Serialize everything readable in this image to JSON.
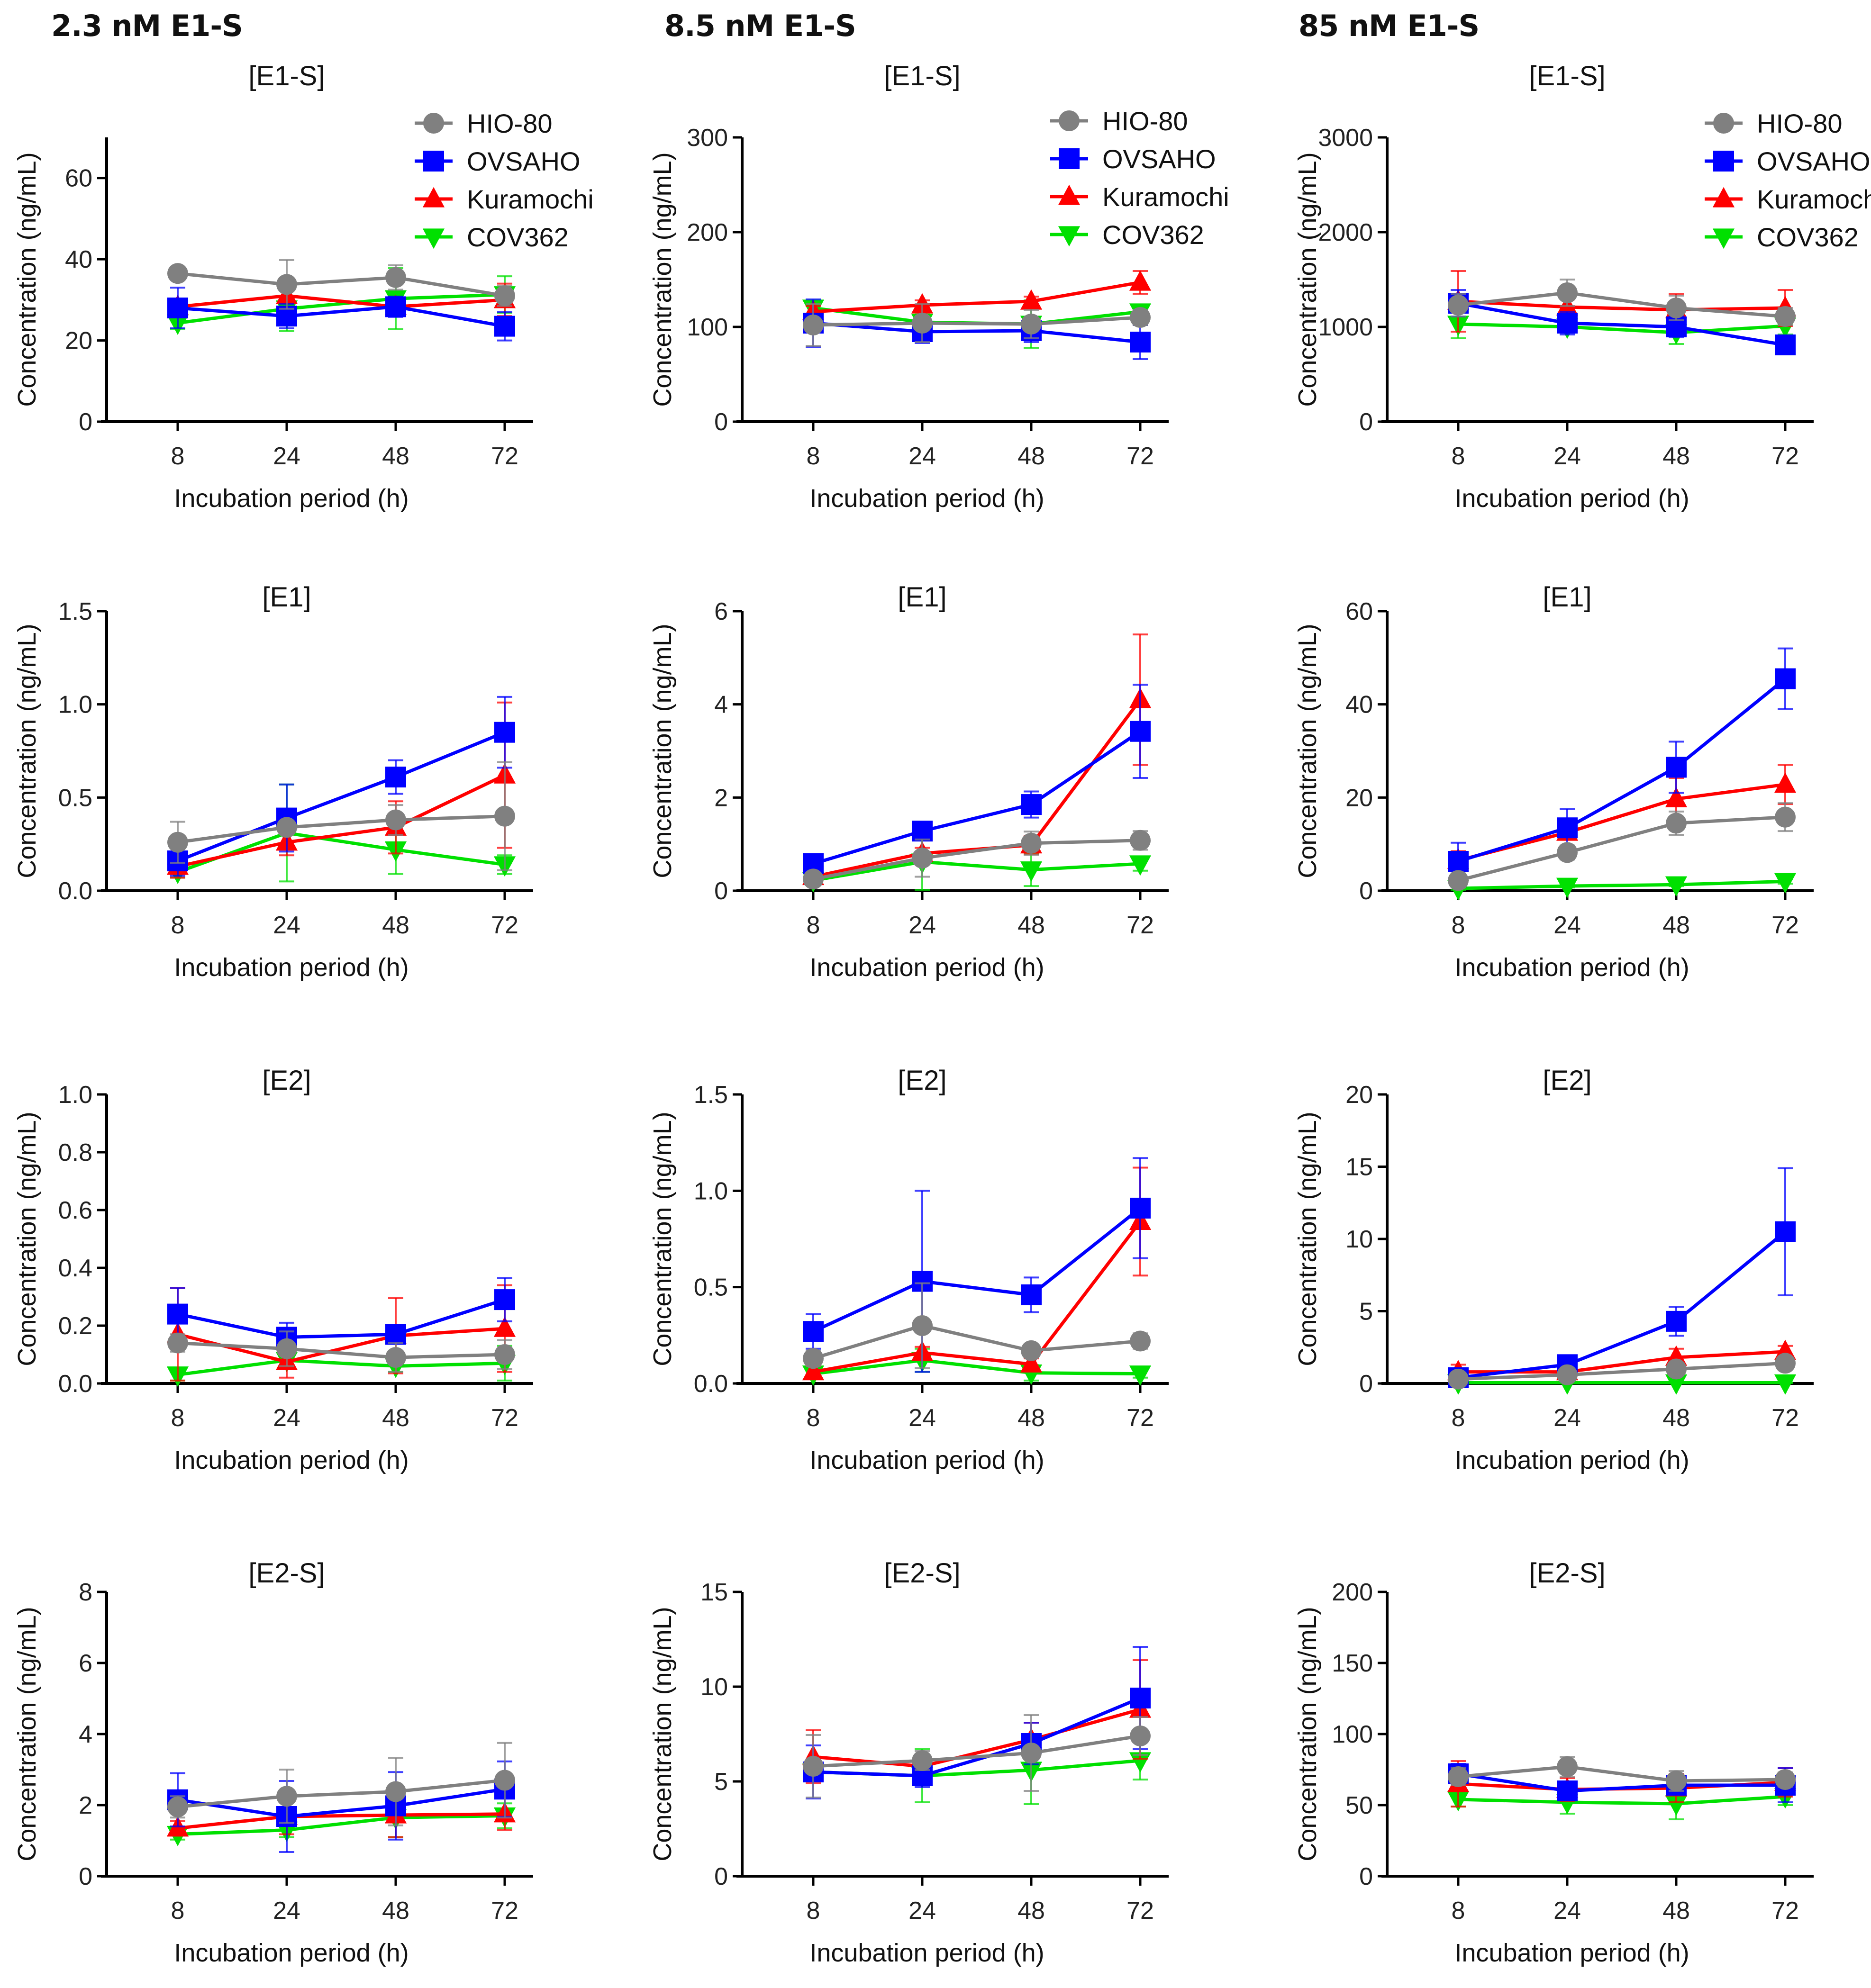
{
  "figure": {
    "column_titles": [
      "2.3 nM E1-S",
      "8.5 nM E1-S",
      "85 nM E1-S"
    ]
  },
  "legend": [
    {
      "name": "HIO-80",
      "color": "#808080",
      "marker": "circle"
    },
    {
      "name": "OVSAHO",
      "color": "#0000ff",
      "marker": "square"
    },
    {
      "name": "Kuramochi",
      "color": "#ff0000",
      "marker": "triangle-up"
    },
    {
      "name": "COV362",
      "color": "#00e000",
      "marker": "triangle-down"
    }
  ],
  "chart_data": [
    {
      "type": "line",
      "row": 0,
      "col": 0,
      "title": "[E1-S]",
      "xlabel": "Incubation period (h)",
      "ylabel": "Concentration (ng/mL)",
      "categories": [
        "8",
        "24",
        "48",
        "72"
      ],
      "ylim": [
        0,
        70
      ],
      "yticks": [
        "0",
        "20",
        "40",
        "60"
      ],
      "legend": "top-right",
      "series": [
        {
          "name": "HIO-80",
          "values": [
            36.5,
            33.8,
            35.5,
            31.0
          ],
          "errors": [
            1.0,
            6.0,
            3.0,
            2.5
          ]
        },
        {
          "name": "OVSAHO",
          "values": [
            28.0,
            26.0,
            28.3,
            23.5
          ],
          "errors": [
            5.0,
            3.0,
            2.5,
            3.5
          ]
        },
        {
          "name": "Kuramochi",
          "values": [
            28.3,
            31.0,
            28.3,
            30.0
          ],
          "errors": [
            2.0,
            1.5,
            2.0,
            4.0
          ]
        },
        {
          "name": "COV362",
          "values": [
            24.3,
            27.8,
            30.3,
            31.3
          ],
          "errors": [
            1.5,
            5.5,
            7.5,
            4.5
          ]
        }
      ]
    },
    {
      "type": "line",
      "row": 0,
      "col": 1,
      "title": "[E1-S]",
      "xlabel": "Incubation period (h)",
      "ylabel": "Concentration (ng/mL)",
      "categories": [
        "8",
        "24",
        "48",
        "72"
      ],
      "ylim": [
        0,
        300
      ],
      "yticks": [
        "0",
        "100",
        "200",
        "300"
      ],
      "legend": "top-right",
      "series": [
        {
          "name": "HIO-80",
          "values": [
            102,
            104,
            103,
            110
          ],
          "errors": [
            22,
            20,
            15,
            8
          ]
        },
        {
          "name": "OVSAHO",
          "values": [
            104,
            95,
            96,
            84
          ],
          "errors": [
            25,
            12,
            12,
            18
          ]
        },
        {
          "name": "Kuramochi",
          "values": [
            116,
            123,
            127,
            147
          ],
          "errors": [
            6,
            5,
            5,
            12
          ]
        },
        {
          "name": "COV362",
          "values": [
            120,
            105,
            103,
            116
          ],
          "errors": [
            8,
            10,
            25,
            6
          ]
        }
      ]
    },
    {
      "type": "line",
      "row": 0,
      "col": 2,
      "title": "[E1-S]",
      "xlabel": "Incubation period (h)",
      "ylabel": "Concentration (ng/mL)",
      "categories": [
        "8",
        "24",
        "48",
        "72"
      ],
      "ylim": [
        0,
        3000
      ],
      "yticks": [
        "0",
        "1000",
        "2000",
        "3000"
      ],
      "legend": "top-right",
      "series": [
        {
          "name": "HIO-80",
          "values": [
            1230,
            1360,
            1200,
            1110
          ],
          "errors": [
            120,
            140,
            130,
            90
          ]
        },
        {
          "name": "OVSAHO",
          "values": [
            1250,
            1040,
            1000,
            810
          ],
          "errors": [
            140,
            120,
            110,
            60
          ]
        },
        {
          "name": "Kuramochi",
          "values": [
            1270,
            1210,
            1180,
            1200
          ],
          "errors": [
            320,
            80,
            170,
            190
          ]
        },
        {
          "name": "COV362",
          "values": [
            1030,
            1000,
            940,
            1010
          ],
          "errors": [
            150,
            60,
            120,
            90
          ]
        }
      ]
    },
    {
      "type": "line",
      "row": 1,
      "col": 0,
      "title": "[E1]",
      "xlabel": "Incubation period (h)",
      "ylabel": "Concentration (ng/mL)",
      "categories": [
        "8",
        "24",
        "48",
        "72"
      ],
      "ylim": [
        0,
        1.5
      ],
      "yticks": [
        "0.0",
        "0.5",
        "1.0",
        "1.5"
      ],
      "series": [
        {
          "name": "HIO-80",
          "values": [
            0.26,
            0.34,
            0.38,
            0.4
          ],
          "errors": [
            0.11,
            0.03,
            0.08,
            0.29
          ]
        },
        {
          "name": "OVSAHO",
          "values": [
            0.16,
            0.39,
            0.61,
            0.85
          ],
          "errors": [
            0.08,
            0.18,
            0.09,
            0.19
          ]
        },
        {
          "name": "Kuramochi",
          "values": [
            0.13,
            0.26,
            0.34,
            0.62
          ],
          "errors": [
            0.06,
            0.07,
            0.14,
            0.39
          ]
        },
        {
          "name": "COV362",
          "values": [
            0.1,
            0.31,
            0.22,
            0.14
          ],
          "errors": [
            0.03,
            0.26,
            0.13,
            0.05
          ]
        }
      ]
    },
    {
      "type": "line",
      "row": 1,
      "col": 1,
      "title": "[E1]",
      "xlabel": "Incubation period (h)",
      "ylabel": "Concentration (ng/mL)",
      "categories": [
        "8",
        "24",
        "48",
        "72"
      ],
      "ylim": [
        0,
        6
      ],
      "yticks": [
        "0",
        "2",
        "4",
        "6"
      ],
      "series": [
        {
          "name": "HIO-80",
          "values": [
            0.25,
            0.7,
            1.02,
            1.08
          ],
          "errors": [
            0.1,
            0.4,
            0.25,
            0.2
          ]
        },
        {
          "name": "OVSAHO",
          "values": [
            0.58,
            1.28,
            1.85,
            3.42
          ],
          "errors": [
            0.15,
            0.08,
            0.28,
            1.0
          ]
        },
        {
          "name": "Kuramochi",
          "values": [
            0.3,
            0.8,
            0.98,
            4.1
          ],
          "errors": [
            0.08,
            0.12,
            0.2,
            1.4
          ]
        },
        {
          "name": "COV362",
          "values": [
            0.22,
            0.62,
            0.45,
            0.58
          ],
          "errors": [
            0.08,
            0.6,
            0.35,
            0.15
          ]
        }
      ]
    },
    {
      "type": "line",
      "row": 1,
      "col": 2,
      "title": "[E1]",
      "xlabel": "Incubation period (h)",
      "ylabel": "Concentration (ng/mL)",
      "categories": [
        "8",
        "24",
        "48",
        "72"
      ],
      "ylim": [
        0,
        60
      ],
      "yticks": [
        "0",
        "20",
        "40",
        "60"
      ],
      "series": [
        {
          "name": "HIO-80",
          "values": [
            2.2,
            8.2,
            14.5,
            15.8
          ],
          "errors": [
            1.5,
            1.5,
            2.5,
            3.0
          ]
        },
        {
          "name": "OVSAHO",
          "values": [
            6.3,
            13.5,
            26.5,
            45.5
          ],
          "errors": [
            4.0,
            4.0,
            5.5,
            6.5
          ]
        },
        {
          "name": "Kuramochi",
          "values": [
            6.5,
            12.5,
            19.7,
            22.8
          ],
          "errors": [
            2.0,
            1.5,
            4.5,
            4.2
          ]
        },
        {
          "name": "COV362",
          "values": [
            0.5,
            1.0,
            1.3,
            2.0
          ],
          "errors": [
            0.3,
            0.3,
            0.3,
            0.5
          ]
        }
      ]
    },
    {
      "type": "line",
      "row": 2,
      "col": 0,
      "title": "[E2]",
      "xlabel": "Incubation period (h)",
      "ylabel": "Concentration (ng/mL)",
      "categories": [
        "8",
        "24",
        "48",
        "72"
      ],
      "ylim": [
        0,
        1.0
      ],
      "yticks": [
        "0.0",
        "0.2",
        "0.4",
        "0.6",
        "0.8",
        "1.0"
      ],
      "series": [
        {
          "name": "HIO-80",
          "values": [
            0.14,
            0.12,
            0.09,
            0.1
          ],
          "errors": [
            0.03,
            0.06,
            0.05,
            0.05
          ]
        },
        {
          "name": "OVSAHO",
          "values": [
            0.24,
            0.16,
            0.17,
            0.29
          ],
          "errors": [
            0.09,
            0.05,
            0.03,
            0.075
          ]
        },
        {
          "name": "Kuramochi",
          "values": [
            0.17,
            0.075,
            0.165,
            0.19
          ],
          "errors": [
            0.16,
            0.055,
            0.13,
            0.15
          ]
        },
        {
          "name": "COV362",
          "values": [
            0.03,
            0.08,
            0.06,
            0.07
          ],
          "errors": [
            0.02,
            0.03,
            0.02,
            0.06
          ]
        }
      ]
    },
    {
      "type": "line",
      "row": 2,
      "col": 1,
      "title": "[E2]",
      "xlabel": "Incubation period (h)",
      "ylabel": "Concentration (ng/mL)",
      "categories": [
        "8",
        "24",
        "48",
        "72"
      ],
      "ylim": [
        0,
        1.5
      ],
      "yticks": [
        "0.0",
        "0.5",
        "1.0",
        "1.5"
      ],
      "series": [
        {
          "name": "HIO-80",
          "values": [
            0.13,
            0.3,
            0.17,
            0.22
          ],
          "errors": [
            0.04,
            0.22,
            0.03,
            0.04
          ]
        },
        {
          "name": "OVSAHO",
          "values": [
            0.27,
            0.53,
            0.46,
            0.91
          ],
          "errors": [
            0.09,
            0.47,
            0.09,
            0.26
          ]
        },
        {
          "name": "Kuramochi",
          "values": [
            0.06,
            0.16,
            0.1,
            0.84
          ],
          "errors": [
            0.03,
            0.03,
            0.03,
            0.28
          ]
        },
        {
          "name": "COV362",
          "values": [
            0.05,
            0.12,
            0.055,
            0.05
          ],
          "errors": [
            0.02,
            0.06,
            0.04,
            0.02
          ]
        }
      ]
    },
    {
      "type": "line",
      "row": 2,
      "col": 2,
      "title": "[E2]",
      "xlabel": "Incubation period (h)",
      "ylabel": "Concentration (ng/mL)",
      "categories": [
        "8",
        "24",
        "48",
        "72"
      ],
      "ylim": [
        0,
        20
      ],
      "yticks": [
        "0",
        "5",
        "10",
        "15",
        "20"
      ],
      "series": [
        {
          "name": "HIO-80",
          "values": [
            0.3,
            0.6,
            1.0,
            1.4
          ],
          "errors": [
            0.1,
            0.2,
            0.3,
            0.4
          ]
        },
        {
          "name": "OVSAHO",
          "values": [
            0.4,
            1.3,
            4.3,
            10.5
          ],
          "errors": [
            0.2,
            0.3,
            1.0,
            4.4
          ]
        },
        {
          "name": "Kuramochi",
          "values": [
            0.8,
            0.8,
            1.8,
            2.2
          ],
          "errors": [
            0.5,
            0.2,
            0.6,
            0.4
          ]
        },
        {
          "name": "COV362",
          "values": [
            0.05,
            0.05,
            0.05,
            0.05
          ],
          "errors": [
            0.02,
            0.02,
            0.02,
            0.02
          ]
        }
      ]
    },
    {
      "type": "line",
      "row": 3,
      "col": 0,
      "title": "[E2-S]",
      "xlabel": "Incubation period (h)",
      "ylabel": "Concentration (ng/mL)",
      "categories": [
        "8",
        "24",
        "48",
        "72"
      ],
      "ylim": [
        0,
        8
      ],
      "yticks": [
        "0",
        "2",
        "4",
        "6",
        "8"
      ],
      "series": [
        {
          "name": "HIO-80",
          "values": [
            1.95,
            2.25,
            2.38,
            2.7
          ],
          "errors": [
            0.3,
            0.75,
            0.95,
            1.05
          ]
        },
        {
          "name": "OVSAHO",
          "values": [
            2.15,
            1.68,
            1.98,
            2.45
          ],
          "errors": [
            0.75,
            1.0,
            0.95,
            0.78
          ]
        },
        {
          "name": "Kuramochi",
          "values": [
            1.35,
            1.68,
            1.72,
            1.75
          ],
          "errors": [
            0.2,
            0.5,
            0.62,
            0.45
          ]
        },
        {
          "name": "COV362",
          "values": [
            1.18,
            1.3,
            1.65,
            1.7
          ],
          "errors": [
            0.15,
            0.2,
            0.55,
            0.35
          ]
        }
      ]
    },
    {
      "type": "line",
      "row": 3,
      "col": 1,
      "title": "[E2-S]",
      "xlabel": "Incubation period (h)",
      "ylabel": "Concentration (ng/mL)",
      "categories": [
        "8",
        "24",
        "48",
        "72"
      ],
      "ylim": [
        0,
        15
      ],
      "yticks": [
        "0",
        "5",
        "10",
        "15"
      ],
      "series": [
        {
          "name": "HIO-80",
          "values": [
            5.8,
            6.1,
            6.5,
            7.4
          ],
          "errors": [
            1.65,
            0.5,
            2.0,
            1.0
          ]
        },
        {
          "name": "OVSAHO",
          "values": [
            5.5,
            5.3,
            7.0,
            9.4
          ],
          "errors": [
            1.4,
            0.6,
            1.1,
            2.7
          ]
        },
        {
          "name": "Kuramochi",
          "values": [
            6.3,
            5.8,
            7.2,
            8.8
          ],
          "errors": [
            1.4,
            0.5,
            0.9,
            2.6
          ]
        },
        {
          "name": "COV362",
          "values": [
            5.5,
            5.3,
            5.6,
            6.1
          ],
          "errors": [
            0.4,
            1.4,
            1.8,
            1.0
          ]
        }
      ]
    },
    {
      "type": "line",
      "row": 3,
      "col": 2,
      "title": "[E2-S]",
      "xlabel": "Incubation period (h)",
      "ylabel": "Concentration (ng/mL)",
      "categories": [
        "8",
        "24",
        "48",
        "72"
      ],
      "ylim": [
        0,
        200
      ],
      "yticks": [
        "0",
        "50",
        "100",
        "150",
        "200"
      ],
      "series": [
        {
          "name": "HIO-80",
          "values": [
            70,
            77,
            67,
            68
          ],
          "errors": [
            6,
            7,
            7,
            5
          ]
        },
        {
          "name": "OVSAHO",
          "values": [
            72,
            60,
            64,
            64
          ],
          "errors": [
            7,
            6,
            6,
            12
          ]
        },
        {
          "name": "Kuramochi",
          "values": [
            65,
            61,
            62,
            66
          ],
          "errors": [
            16,
            8,
            10,
            10
          ]
        },
        {
          "name": "COV362",
          "values": [
            54,
            52,
            51,
            56
          ],
          "errors": [
            5,
            8,
            11,
            6
          ]
        }
      ]
    }
  ]
}
